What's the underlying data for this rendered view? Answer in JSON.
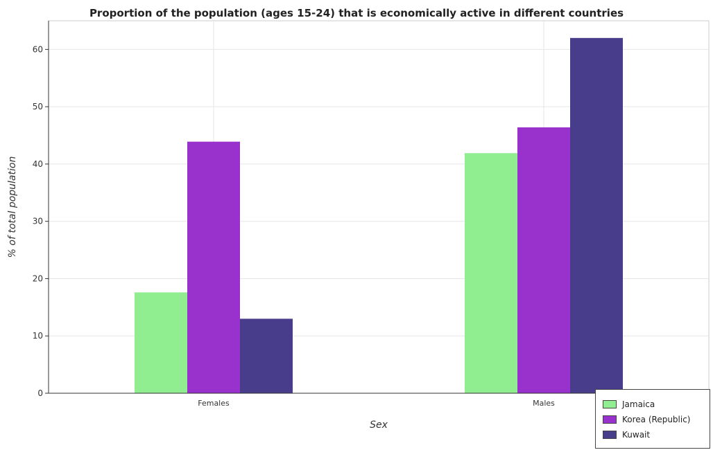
{
  "chart_data": {
    "type": "bar",
    "title": "Proportion of the population (ages 15-24) that is economically active in different countries",
    "xlabel": "Sex",
    "ylabel": "% of total population",
    "categories": [
      "Females",
      "Males"
    ],
    "series": [
      {
        "name": "Jamaica",
        "color": "#90ee90",
        "values": [
          17.6,
          41.9
        ]
      },
      {
        "name": "Korea (Republic)",
        "color": "#9932cc",
        "values": [
          43.9,
          46.4
        ]
      },
      {
        "name": "Kuwait",
        "color": "#483d8b",
        "values": [
          13.0,
          62.0
        ]
      }
    ],
    "ylim": [
      0,
      65
    ],
    "yticks": [
      0,
      10,
      20,
      30,
      40,
      50,
      60
    ],
    "grid": true,
    "legend_position": "bottom-right"
  }
}
